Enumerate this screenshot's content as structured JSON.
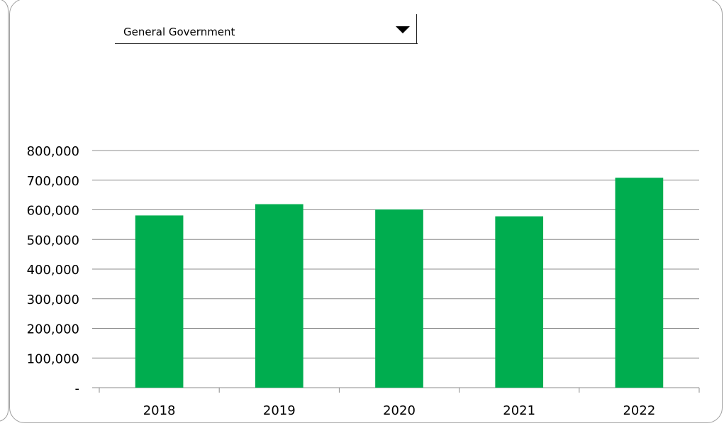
{
  "dropdown": {
    "selected": "General Government",
    "icon": "triangle-down-icon"
  },
  "colors": {
    "bar": "#00ad4f",
    "grid": "#8c8c8c",
    "axis": "#8c8c8c",
    "text": "#000000"
  },
  "chart_data": {
    "type": "bar",
    "title": "",
    "xlabel": "",
    "ylabel": "",
    "categories": [
      "2018",
      "2019",
      "2020",
      "2021",
      "2022"
    ],
    "values": [
      581000,
      619000,
      601000,
      578000,
      708000
    ],
    "ylim": [
      0,
      800000
    ],
    "yticks": [
      0,
      100000,
      200000,
      300000,
      400000,
      500000,
      600000,
      700000,
      800000
    ],
    "ytick_labels": [
      "-",
      "100,000",
      "200,000",
      "300,000",
      "400,000",
      "500,000",
      "600,000",
      "700,000",
      "800,000"
    ],
    "grid": true,
    "legend": "none"
  }
}
